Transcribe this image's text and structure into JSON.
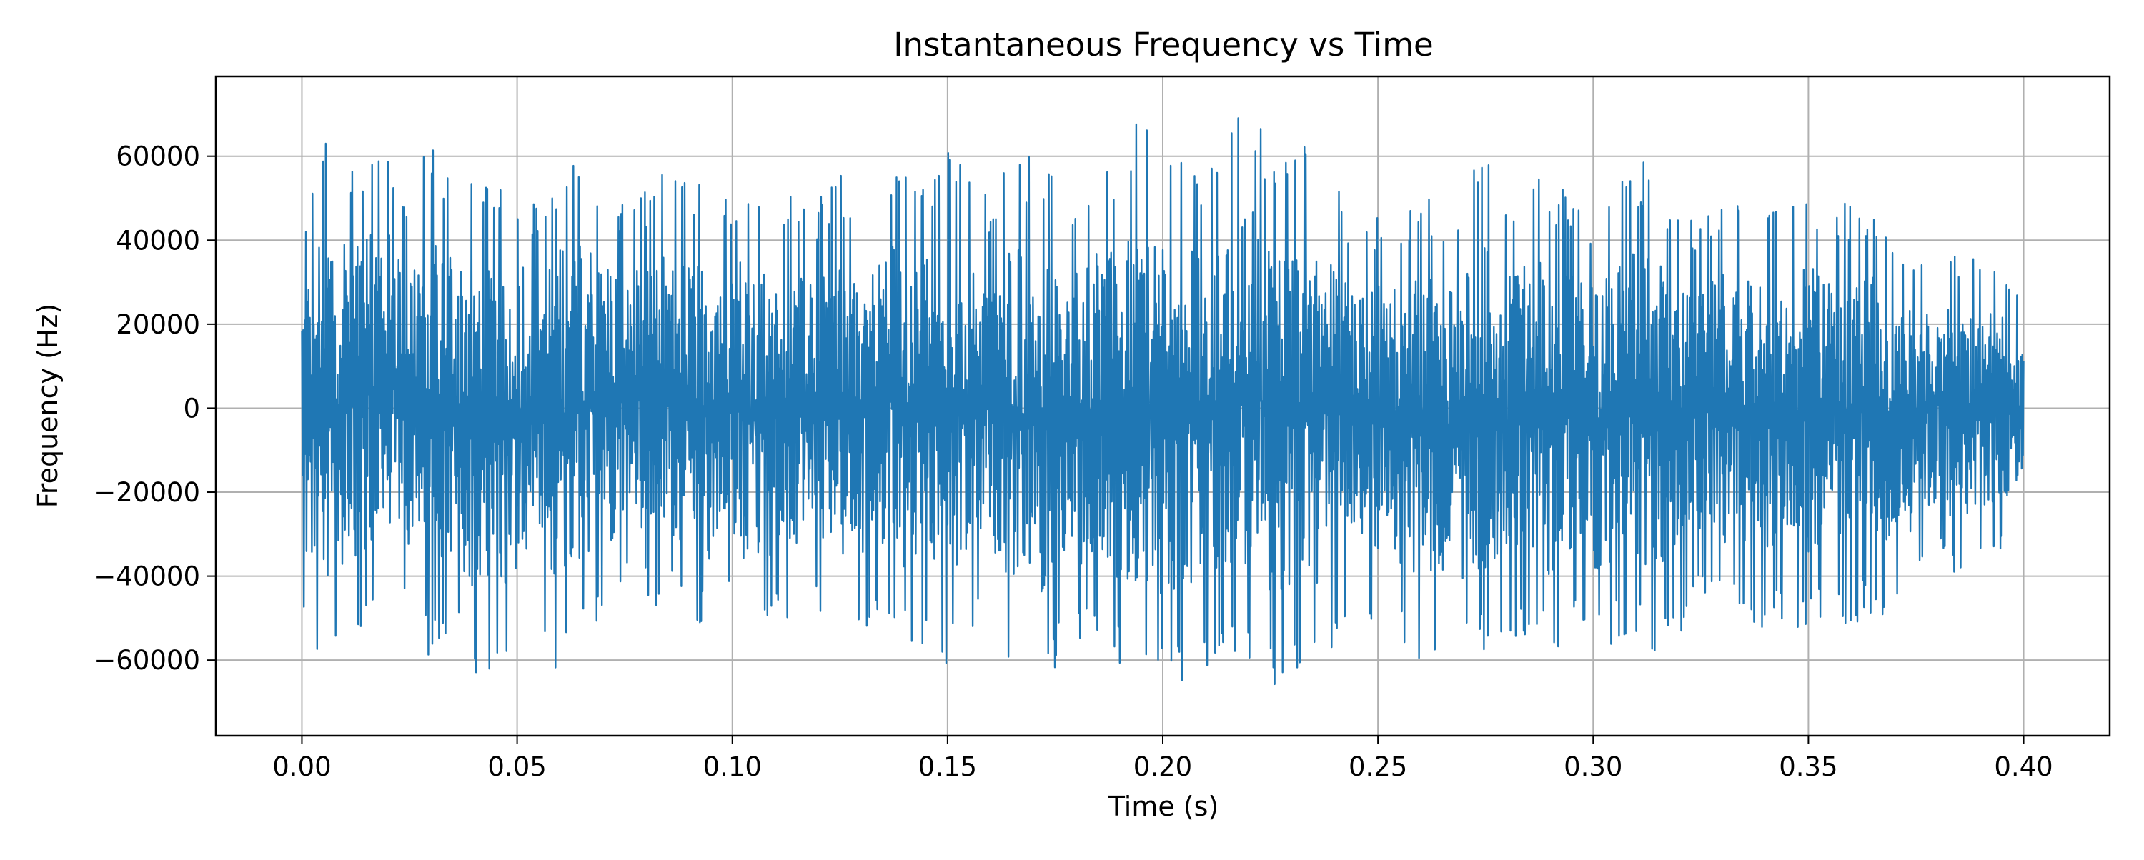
{
  "chart_data": {
    "type": "line",
    "title": "Instantaneous Frequency vs Time",
    "xlabel": "Time (s)",
    "ylabel": "Frequency (Hz)",
    "xlim": [
      -0.02,
      0.42
    ],
    "ylim": [
      -78000,
      79000
    ],
    "grid": true,
    "legend": "none",
    "color": "#1f77b4",
    "x_ticks": [
      0.0,
      0.05,
      0.1,
      0.15,
      0.2,
      0.25,
      0.3,
      0.35,
      0.4
    ],
    "x_tick_labels": [
      "0.00",
      "0.05",
      "0.10",
      "0.15",
      "0.20",
      "0.25",
      "0.30",
      "0.35",
      "0.40"
    ],
    "y_ticks": [
      -60000,
      -40000,
      -20000,
      0,
      20000,
      40000,
      60000
    ],
    "y_tick_labels": [
      "−60000",
      "−40000",
      "−20000",
      "0",
      "20000",
      "40000",
      "60000"
    ],
    "x_range": [
      0.0,
      0.4
    ],
    "envelope": {
      "t": [
        0.0,
        0.005,
        0.01,
        0.015,
        0.02,
        0.025,
        0.03,
        0.035,
        0.04,
        0.045,
        0.05,
        0.055,
        0.06,
        0.065,
        0.07,
        0.075,
        0.08,
        0.085,
        0.09,
        0.095,
        0.1,
        0.105,
        0.11,
        0.115,
        0.12,
        0.125,
        0.13,
        0.135,
        0.14,
        0.145,
        0.15,
        0.155,
        0.16,
        0.165,
        0.17,
        0.175,
        0.18,
        0.185,
        0.19,
        0.195,
        0.2,
        0.205,
        0.21,
        0.215,
        0.22,
        0.225,
        0.23,
        0.235,
        0.24,
        0.245,
        0.25,
        0.255,
        0.26,
        0.265,
        0.27,
        0.275,
        0.28,
        0.285,
        0.29,
        0.295,
        0.3,
        0.305,
        0.31,
        0.315,
        0.32,
        0.325,
        0.33,
        0.335,
        0.34,
        0.345,
        0.35,
        0.355,
        0.36,
        0.365,
        0.37,
        0.375,
        0.38,
        0.385,
        0.39,
        0.395,
        0.4
      ],
      "max": [
        40000,
        66000,
        60000,
        63000,
        62000,
        52000,
        65000,
        55000,
        56000,
        54000,
        56000,
        49000,
        60000,
        61000,
        52000,
        48000,
        52000,
        58000,
        54000,
        56000,
        54000,
        54000,
        52000,
        52000,
        50000,
        56000,
        52000,
        56000,
        62000,
        58000,
        62000,
        56000,
        52000,
        60000,
        62000,
        56000,
        52000,
        58000,
        60000,
        70000,
        66000,
        68000,
        58000,
        68000,
        72000,
        66000,
        64000,
        64000,
        56000,
        40000,
        48000,
        46000,
        56000,
        48000,
        54000,
        64000,
        52000,
        58000,
        54000,
        54000,
        48000,
        56000,
        60000,
        56000,
        46000,
        44000,
        52000,
        48000,
        48000,
        46000,
        54000,
        50000,
        50000,
        50000,
        40000,
        40000,
        40000,
        36000,
        37000,
        35000,
        24000
      ],
      "min": [
        -49000,
        -63000,
        -60000,
        -56000,
        -48000,
        -52000,
        -60000,
        -54000,
        -67000,
        -66000,
        -58000,
        -52000,
        -65000,
        -58000,
        -54000,
        -42000,
        -48000,
        -48000,
        -52000,
        -56000,
        -50000,
        -60000,
        -52000,
        -52000,
        -50000,
        -56000,
        -54000,
        -52000,
        -60000,
        -56000,
        -62000,
        -56000,
        -52000,
        -64000,
        -68000,
        -62000,
        -58000,
        -56000,
        -64000,
        -66000,
        -71000,
        -66000,
        -62000,
        -60000,
        -62000,
        -68000,
        -68000,
        -66000,
        -56000,
        -44000,
        -54000,
        -56000,
        -60000,
        -58000,
        -62000,
        -60000,
        -58000,
        -56000,
        -60000,
        -54000,
        -60000,
        -56000,
        -58000,
        -58000,
        -60000,
        -44000,
        -50000,
        -50000,
        -54000,
        -50000,
        -56000,
        -50000,
        -52000,
        -50000,
        -48000,
        -46000,
        -38000,
        -42000,
        -38000,
        -35000,
        -29000
      ]
    }
  }
}
